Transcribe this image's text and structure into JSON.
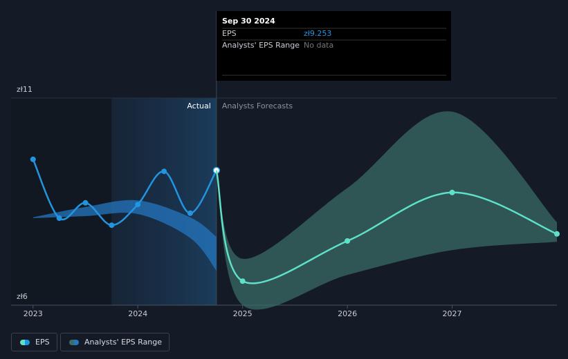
{
  "chart_data": {
    "type": "line",
    "xlim": [
      2022.79,
      2028.0
    ],
    "xticks": [
      2023,
      2024,
      2025,
      2026,
      2027
    ],
    "ylim": [
      6,
      11
    ],
    "yticks": [
      {
        "value": 6,
        "label": "zł6"
      },
      {
        "value": 11,
        "label": "zł11"
      }
    ],
    "grid": true,
    "region_labels": {
      "actual": "Actual",
      "forecast": "Analysts Forecasts"
    },
    "eps_name": "EPS",
    "range_name": "Analysts' EPS Range",
    "series": [
      {
        "color": "#2394df",
        "x": [
          2023,
          2023.25,
          2023.5,
          2023.75,
          2024,
          2024.25,
          2024.5,
          2024.75
        ],
        "values": [
          9.52,
          8.1,
          8.47,
          7.93,
          8.43,
          9.23,
          8.22,
          9.253
        ]
      },
      {
        "color": "#5ee0c9",
        "x": [
          2024.75,
          2025,
          2026,
          2027,
          2028
        ],
        "values": [
          9.253,
          6.58,
          7.55,
          8.72,
          7.72
        ]
      }
    ],
    "ranges": [
      {
        "color": "#2476bf",
        "x": [
          2023,
          2023.5,
          2024,
          2024.5,
          2024.75
        ],
        "high": [
          8.12,
          8.37,
          8.53,
          8.12,
          7.65
        ],
        "low": [
          8.1,
          8.15,
          8.2,
          7.62,
          6.83
        ]
      },
      {
        "color": "#3a6f69",
        "x": [
          2024.75,
          2025,
          2026,
          2027,
          2028
        ],
        "high": [
          9.253,
          7.12,
          8.83,
          10.67,
          8.0
        ],
        "low": [
          9.253,
          6.0,
          6.73,
          7.33,
          7.53
        ]
      }
    ],
    "tooltip": {
      "date": "Sep 30 2024",
      "rows": [
        {
          "label": "EPS",
          "value": "zł9.253"
        },
        {
          "label": "Analysts' EPS Range",
          "value": "No data"
        }
      ]
    }
  }
}
